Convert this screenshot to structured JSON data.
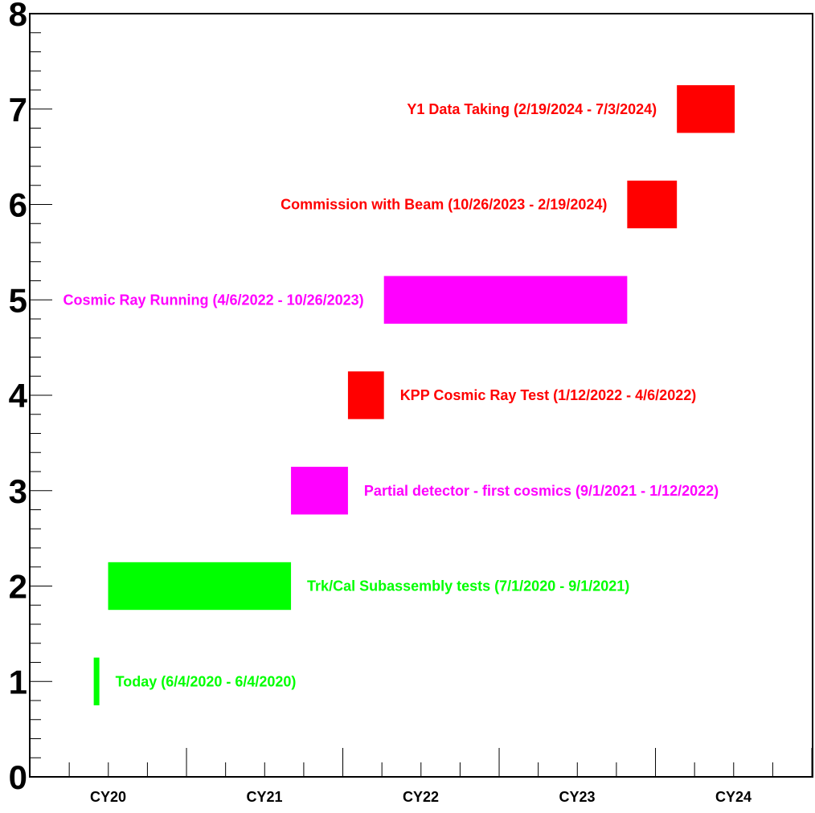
{
  "chart_data": {
    "type": "bar",
    "orientation": "horizontal-gantt",
    "ylim": [
      0,
      8
    ],
    "y_ticks": [
      "0",
      "1",
      "2",
      "3",
      "4",
      "5",
      "6",
      "7",
      "8"
    ],
    "x_ticks": [
      "CY20",
      "CY21",
      "CY22",
      "CY23",
      "CY24"
    ],
    "tasks": [
      {
        "label": "Today (6/4/2020 - 6/4/2020)",
        "start": "2020-06-04",
        "end": "2020-06-04",
        "y": 1,
        "color": "#00ff00",
        "label_side": "right"
      },
      {
        "label": "Trk/Cal Subassembly tests (7/1/2020 - 9/1/2021)",
        "start": "2020-07-01",
        "end": "2021-09-01",
        "y": 2,
        "color": "#00ff00",
        "label_side": "right"
      },
      {
        "label": "Partial detector - first cosmics (9/1/2021 - 1/12/2022)",
        "start": "2021-09-01",
        "end": "2022-01-12",
        "y": 3,
        "color": "#ff00ff",
        "label_side": "right"
      },
      {
        "label": "KPP Cosmic Ray Test (1/12/2022 - 4/6/2022)",
        "start": "2022-01-12",
        "end": "2022-04-06",
        "y": 4,
        "color": "#ff0000",
        "label_side": "right"
      },
      {
        "label": "Cosmic Ray Running (4/6/2022 - 10/26/2023)",
        "start": "2022-04-06",
        "end": "2023-10-26",
        "y": 5,
        "color": "#ff00ff",
        "label_side": "left"
      },
      {
        "label": "Commission with Beam (10/26/2023 - 2/19/2024)",
        "start": "2023-10-26",
        "end": "2024-02-19",
        "y": 6,
        "color": "#ff0000",
        "label_side": "left"
      },
      {
        "label": "Y1 Data Taking (2/19/2024 - 7/3/2024)",
        "start": "2024-02-19",
        "end": "2024-07-03",
        "y": 7,
        "color": "#ff0000",
        "label_side": "left"
      }
    ]
  }
}
